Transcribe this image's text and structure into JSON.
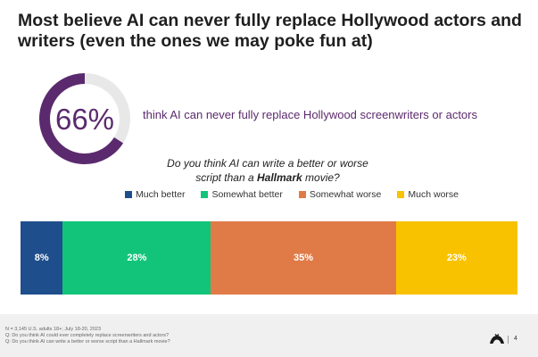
{
  "title": "Most believe AI can never fully replace Hollywood actors and writers (even the ones we may poke fun at)",
  "stat": {
    "value": "66%",
    "fraction": 0.66,
    "text": "think AI can never fully replace Hollywood screenwriters or actors",
    "ring_color": "#5b2a6e",
    "track_color": "#e8e8e8"
  },
  "question": {
    "line1": "Do you think AI can write a better or worse",
    "line2_pre": "script than a ",
    "line2_bold": "Hallmark",
    "line2_post": " movie?"
  },
  "chart_data": {
    "type": "bar",
    "orientation": "horizontal-stacked",
    "categories": [
      "Much better",
      "Somewhat better",
      "Somewhat worse",
      "Much worse"
    ],
    "values": [
      8,
      28,
      35,
      23
    ],
    "labels": [
      "8%",
      "28%",
      "35%",
      "23%"
    ],
    "colors": [
      "#1f4e8c",
      "#12c47a",
      "#e07b48",
      "#f8c200"
    ],
    "unit": "%"
  },
  "footnote": {
    "line1": "N = 3,145 U.S. adults 18+; July 18-20, 2023",
    "line2": "Q: Do you think AI could ever completely replace screenwriters and actors?",
    "line3": "Q: Do you think AI can write a better or worse script than a Hallmark movie?"
  },
  "page_number": "4",
  "logo_icon": "brand-logo-icon"
}
